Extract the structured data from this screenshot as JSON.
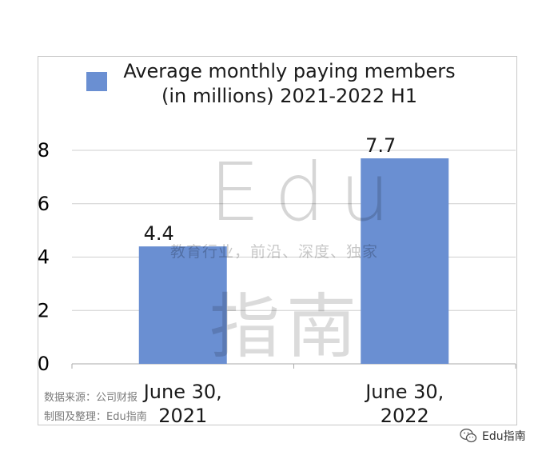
{
  "chart_data": {
    "type": "bar",
    "legend": "Average monthly paying members\n(in millions) 2021-2022 H1",
    "categories": [
      "June 30,\n2021",
      "June 30,\n2022"
    ],
    "series": [
      {
        "name": "Average monthly paying members\n(in millions) 2021-2022 H1",
        "values": [
          4.4,
          7.7
        ],
        "color": "#6a8fd2"
      }
    ],
    "ylim": [
      0,
      8
    ],
    "yticks": [
      0,
      2,
      4,
      6,
      8
    ],
    "grid": true,
    "legend_placement": "top"
  },
  "watermark": {
    "edu": "Edu",
    "tagline": "教育行业，前沿、深度、独家",
    "chinese": "指南"
  },
  "source_note": {
    "line1": "数据来源：公司财报",
    "line2": "制图及整理：Edu指南"
  },
  "brand": {
    "icon": "wechat-icon",
    "text": "Edu指南"
  }
}
